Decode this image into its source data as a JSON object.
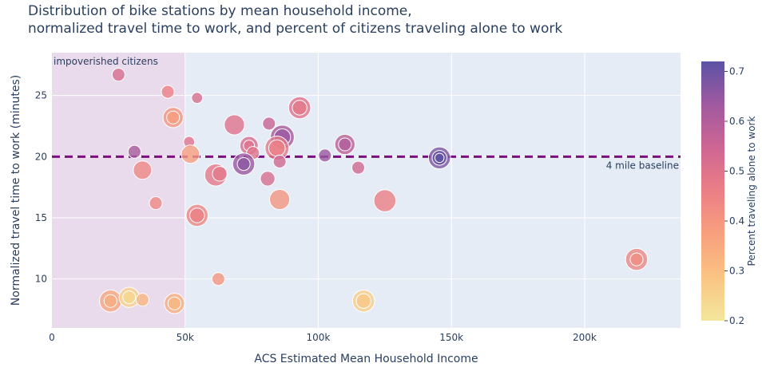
{
  "chart_data": {
    "type": "scatter",
    "title": [
      "Distribution of bike stations by mean household income,",
      "normalized travel time to work, and percent of citizens traveling alone to work"
    ],
    "xlabel": "ACS Estimated Mean Household Income",
    "ylabel": "Normalized travel time to work (minutes)",
    "xlim": [
      0,
      236000
    ],
    "ylim": [
      6,
      28.5
    ],
    "xticks": [
      0,
      50000,
      100000,
      150000,
      200000
    ],
    "xtick_labels": [
      "0",
      "50k",
      "100k",
      "150k",
      "200k"
    ],
    "yticks": [
      10,
      15,
      20,
      25
    ],
    "ytick_labels": [
      "10",
      "15",
      "20",
      "25"
    ],
    "colorbar": {
      "title": "Percent traveling alone to work",
      "range": [
        0.2,
        0.72
      ],
      "ticks": [
        0.2,
        0.3,
        0.4,
        0.5,
        0.6,
        0.7
      ],
      "tick_labels": [
        "0.2",
        "0.3",
        "0.4",
        "0.5",
        "0.6",
        "0.7"
      ],
      "colorscale": [
        "#f3e79b",
        "#fac484",
        "#f8a07e",
        "#eb7f86",
        "#ce6693",
        "#a059a0",
        "#5c53a5"
      ]
    },
    "shaded_region": {
      "x": [
        0,
        50000
      ],
      "label": "impoverished citizens",
      "color": "#ead7ea"
    },
    "baseline": {
      "y": 20,
      "label": "4 mile baseline",
      "color": "#7a0f80"
    },
    "points": [
      {
        "x": 25000,
        "y": 26.7,
        "c": 0.52,
        "s": 7
      },
      {
        "x": 43500,
        "y": 25.3,
        "c": 0.46,
        "s": 7
      },
      {
        "x": 54500,
        "y": 24.8,
        "c": 0.52,
        "s": 6
      },
      {
        "x": 45500,
        "y": 23.2,
        "c": 0.4,
        "s": 11
      },
      {
        "x": 45500,
        "y": 23.2,
        "c": 0.38,
        "s": 7
      },
      {
        "x": 51500,
        "y": 21.2,
        "c": 0.5,
        "s": 6
      },
      {
        "x": 68500,
        "y": 22.6,
        "c": 0.5,
        "s": 11
      },
      {
        "x": 81500,
        "y": 22.7,
        "c": 0.56,
        "s": 7
      },
      {
        "x": 93000,
        "y": 24.0,
        "c": 0.5,
        "s": 12
      },
      {
        "x": 93000,
        "y": 24.0,
        "c": 0.48,
        "s": 8
      },
      {
        "x": 86500,
        "y": 21.6,
        "c": 0.62,
        "s": 13
      },
      {
        "x": 86500,
        "y": 21.6,
        "c": 0.64,
        "s": 9
      },
      {
        "x": 74000,
        "y": 20.9,
        "c": 0.52,
        "s": 10
      },
      {
        "x": 74000,
        "y": 20.9,
        "c": 0.5,
        "s": 6
      },
      {
        "x": 84500,
        "y": 20.7,
        "c": 0.48,
        "s": 13
      },
      {
        "x": 84500,
        "y": 20.7,
        "c": 0.46,
        "s": 9
      },
      {
        "x": 75500,
        "y": 20.3,
        "c": 0.5,
        "s": 7
      },
      {
        "x": 110000,
        "y": 21.0,
        "c": 0.58,
        "s": 11
      },
      {
        "x": 110000,
        "y": 21.0,
        "c": 0.6,
        "s": 7
      },
      {
        "x": 31000,
        "y": 20.4,
        "c": 0.62,
        "s": 7
      },
      {
        "x": 52000,
        "y": 20.2,
        "c": 0.38,
        "s": 10
      },
      {
        "x": 72000,
        "y": 19.4,
        "c": 0.64,
        "s": 12
      },
      {
        "x": 72000,
        "y": 19.4,
        "c": 0.66,
        "s": 7
      },
      {
        "x": 85500,
        "y": 19.6,
        "c": 0.54,
        "s": 7
      },
      {
        "x": 102500,
        "y": 20.1,
        "c": 0.64,
        "s": 7
      },
      {
        "x": 145500,
        "y": 19.9,
        "c": 0.68,
        "s": 12
      },
      {
        "x": 145500,
        "y": 19.9,
        "c": 0.7,
        "s": 8
      },
      {
        "x": 145500,
        "y": 19.9,
        "c": 0.72,
        "s": 5
      },
      {
        "x": 115000,
        "y": 19.1,
        "c": 0.54,
        "s": 7
      },
      {
        "x": 34000,
        "y": 18.9,
        "c": 0.44,
        "s": 10
      },
      {
        "x": 61500,
        "y": 18.5,
        "c": 0.48,
        "s": 12
      },
      {
        "x": 63000,
        "y": 18.6,
        "c": 0.48,
        "s": 8
      },
      {
        "x": 81000,
        "y": 18.2,
        "c": 0.52,
        "s": 8
      },
      {
        "x": 39000,
        "y": 16.2,
        "c": 0.44,
        "s": 7
      },
      {
        "x": 85500,
        "y": 16.5,
        "c": 0.4,
        "s": 11
      },
      {
        "x": 125000,
        "y": 16.4,
        "c": 0.46,
        "s": 12
      },
      {
        "x": 54500,
        "y": 15.2,
        "c": 0.44,
        "s": 12
      },
      {
        "x": 54500,
        "y": 15.2,
        "c": 0.46,
        "s": 8
      },
      {
        "x": 62500,
        "y": 10.0,
        "c": 0.4,
        "s": 7
      },
      {
        "x": 219500,
        "y": 11.6,
        "c": 0.44,
        "s": 12
      },
      {
        "x": 219500,
        "y": 11.6,
        "c": 0.42,
        "s": 7
      },
      {
        "x": 22000,
        "y": 8.2,
        "c": 0.36,
        "s": 12
      },
      {
        "x": 22000,
        "y": 8.2,
        "c": 0.34,
        "s": 7
      },
      {
        "x": 29000,
        "y": 8.5,
        "c": 0.26,
        "s": 11
      },
      {
        "x": 29000,
        "y": 8.5,
        "c": 0.24,
        "s": 7
      },
      {
        "x": 34000,
        "y": 8.3,
        "c": 0.32,
        "s": 7
      },
      {
        "x": 46000,
        "y": 8.0,
        "c": 0.34,
        "s": 11
      },
      {
        "x": 46000,
        "y": 8.0,
        "c": 0.32,
        "s": 7
      },
      {
        "x": 117000,
        "y": 8.2,
        "c": 0.26,
        "s": 12
      },
      {
        "x": 117000,
        "y": 8.2,
        "c": 0.28,
        "s": 8
      }
    ]
  }
}
